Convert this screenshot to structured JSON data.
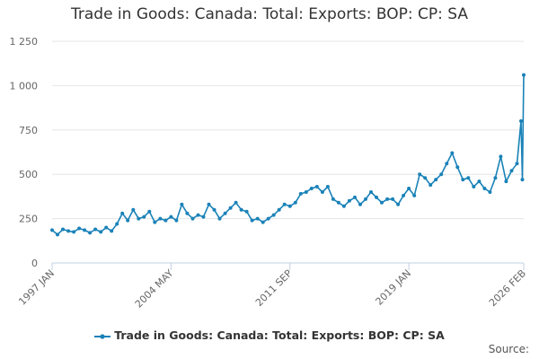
{
  "colors": {
    "series": "#1a82b8",
    "grid": "#e6e6e6",
    "axis": "#c0d0e0",
    "text": "#666666"
  },
  "source_label": "Source:",
  "chart_data": {
    "type": "line",
    "title": "Trade in Goods: Canada: Total: Exports: BOP: CP: SA",
    "xlabel": "",
    "ylabel": "",
    "ylim": [
      0,
      1250
    ],
    "yticks": [
      0,
      250,
      500,
      750,
      1000,
      1250
    ],
    "ytick_labels": [
      "0",
      "250",
      "500",
      "750",
      "1 000",
      "1 250"
    ],
    "x_range": [
      1997.0,
      2026.083
    ],
    "xticks": [
      {
        "label": "1997 JAN",
        "x": 1997.0
      },
      {
        "label": "2004 MAY",
        "x": 2004.333
      },
      {
        "label": "2011 SEP",
        "x": 2011.667
      },
      {
        "label": "2019 JAN",
        "x": 2019.0
      },
      {
        "label": "2026 FEB",
        "x": 2026.083
      }
    ],
    "grid": true,
    "legend": "bottom-center",
    "series": [
      {
        "name": "Trade in Goods: Canada: Total: Exports: BOP: CP: SA",
        "points": [
          [
            1997.0,
            185
          ],
          [
            1997.333,
            160
          ],
          [
            1997.667,
            190
          ],
          [
            1998.0,
            180
          ],
          [
            1998.333,
            175
          ],
          [
            1998.667,
            195
          ],
          [
            1999.0,
            185
          ],
          [
            1999.333,
            170
          ],
          [
            1999.667,
            190
          ],
          [
            2000.0,
            175
          ],
          [
            2000.333,
            200
          ],
          [
            2000.667,
            180
          ],
          [
            2001.0,
            220
          ],
          [
            2001.333,
            280
          ],
          [
            2001.667,
            240
          ],
          [
            2002.0,
            300
          ],
          [
            2002.333,
            250
          ],
          [
            2002.667,
            260
          ],
          [
            2003.0,
            290
          ],
          [
            2003.333,
            230
          ],
          [
            2003.667,
            250
          ],
          [
            2004.0,
            240
          ],
          [
            2004.333,
            260
          ],
          [
            2004.667,
            240
          ],
          [
            2005.0,
            330
          ],
          [
            2005.333,
            280
          ],
          [
            2005.667,
            250
          ],
          [
            2006.0,
            270
          ],
          [
            2006.333,
            260
          ],
          [
            2006.667,
            330
          ],
          [
            2007.0,
            300
          ],
          [
            2007.333,
            250
          ],
          [
            2007.667,
            280
          ],
          [
            2008.0,
            310
          ],
          [
            2008.333,
            340
          ],
          [
            2008.667,
            300
          ],
          [
            2009.0,
            290
          ],
          [
            2009.333,
            240
          ],
          [
            2009.667,
            250
          ],
          [
            2010.0,
            230
          ],
          [
            2010.333,
            250
          ],
          [
            2010.667,
            270
          ],
          [
            2011.0,
            300
          ],
          [
            2011.333,
            330
          ],
          [
            2011.667,
            320
          ],
          [
            2012.0,
            340
          ],
          [
            2012.333,
            390
          ],
          [
            2012.667,
            400
          ],
          [
            2013.0,
            420
          ],
          [
            2013.333,
            430
          ],
          [
            2013.667,
            400
          ],
          [
            2014.0,
            430
          ],
          [
            2014.333,
            360
          ],
          [
            2014.667,
            340
          ],
          [
            2015.0,
            320
          ],
          [
            2015.333,
            350
          ],
          [
            2015.667,
            370
          ],
          [
            2016.0,
            330
          ],
          [
            2016.333,
            360
          ],
          [
            2016.667,
            400
          ],
          [
            2017.0,
            370
          ],
          [
            2017.333,
            340
          ],
          [
            2017.667,
            360
          ],
          [
            2018.0,
            360
          ],
          [
            2018.333,
            330
          ],
          [
            2018.667,
            380
          ],
          [
            2019.0,
            420
          ],
          [
            2019.333,
            380
          ],
          [
            2019.667,
            500
          ],
          [
            2020.0,
            480
          ],
          [
            2020.333,
            440
          ],
          [
            2020.667,
            470
          ],
          [
            2021.0,
            500
          ],
          [
            2021.333,
            560
          ],
          [
            2021.667,
            620
          ],
          [
            2022.0,
            540
          ],
          [
            2022.333,
            470
          ],
          [
            2022.667,
            480
          ],
          [
            2023.0,
            430
          ],
          [
            2023.333,
            460
          ],
          [
            2023.667,
            420
          ],
          [
            2024.0,
            400
          ],
          [
            2024.333,
            480
          ],
          [
            2024.667,
            600
          ],
          [
            2025.0,
            460
          ],
          [
            2025.333,
            520
          ],
          [
            2025.667,
            560
          ],
          [
            2025.917,
            800
          ],
          [
            2026.0,
            470
          ],
          [
            2026.083,
            1060
          ]
        ]
      }
    ]
  }
}
